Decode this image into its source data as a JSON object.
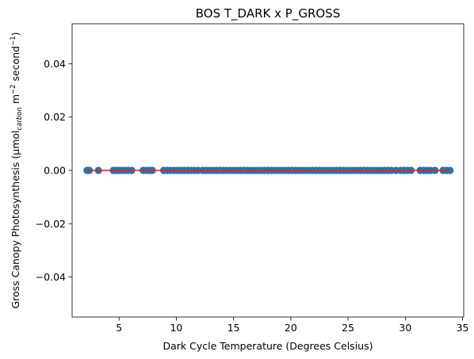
{
  "chart_data": {
    "type": "scatter",
    "title": "BOS T_DARK x P_GROSS",
    "xlabel": "Dark Cycle Temperature (Degrees Celsius)",
    "ylabel": {
      "prefix": "Gross Canopy Photosynthesis (µmol",
      "subscript": "carbon",
      "mid1": " m",
      "sup1": "−2",
      "mid2": " second",
      "sup2": "−1",
      "suffix": ")"
    },
    "xlim": [
      0.9,
      35.1
    ],
    "ylim": [
      -0.055,
      0.055
    ],
    "x_ticks": [
      5,
      10,
      15,
      20,
      25,
      30,
      35
    ],
    "x_tick_labels": [
      "5",
      "10",
      "15",
      "20",
      "25",
      "30",
      "35"
    ],
    "y_ticks": [
      -0.04,
      -0.02,
      0.0,
      0.02,
      0.04
    ],
    "y_tick_labels": [
      "−0.04",
      "−0.02",
      "0.00",
      "0.02",
      "0.04"
    ],
    "grid": false,
    "scatter_color": "#1f77b4",
    "line_color": "#d62728",
    "trend_line": {
      "x": [
        2.2,
        33.9
      ],
      "y": [
        0.0,
        0.0
      ]
    },
    "x": [
      2.2,
      2.4,
      3.2,
      4.5,
      4.8,
      5.0,
      5.2,
      5.5,
      5.8,
      6.1,
      7.1,
      7.4,
      7.7,
      7.9,
      8.9,
      9.2,
      9.5,
      9.8,
      10.1,
      10.4,
      10.7,
      11.0,
      11.3,
      11.6,
      11.9,
      12.3,
      12.6,
      12.9,
      13.2,
      13.5,
      13.8,
      14.1,
      14.4,
      14.7,
      15.0,
      15.3,
      15.6,
      15.9,
      16.2,
      16.5,
      16.8,
      17.1,
      17.4,
      17.7,
      18.0,
      18.3,
      18.6,
      18.9,
      19.2,
      19.5,
      19.8,
      20.1,
      20.4,
      20.7,
      21.0,
      21.3,
      21.6,
      21.9,
      22.2,
      22.5,
      22.8,
      23.1,
      23.4,
      23.7,
      24.0,
      24.3,
      24.6,
      24.9,
      25.2,
      25.5,
      25.8,
      26.1,
      26.4,
      26.7,
      27.0,
      27.3,
      27.6,
      27.9,
      28.2,
      28.5,
      28.8,
      29.2,
      29.6,
      29.9,
      30.2,
      30.5,
      31.3,
      31.6,
      31.9,
      32.2,
      32.6,
      33.3,
      33.6,
      33.9
    ],
    "y_constant": 0.0
  }
}
